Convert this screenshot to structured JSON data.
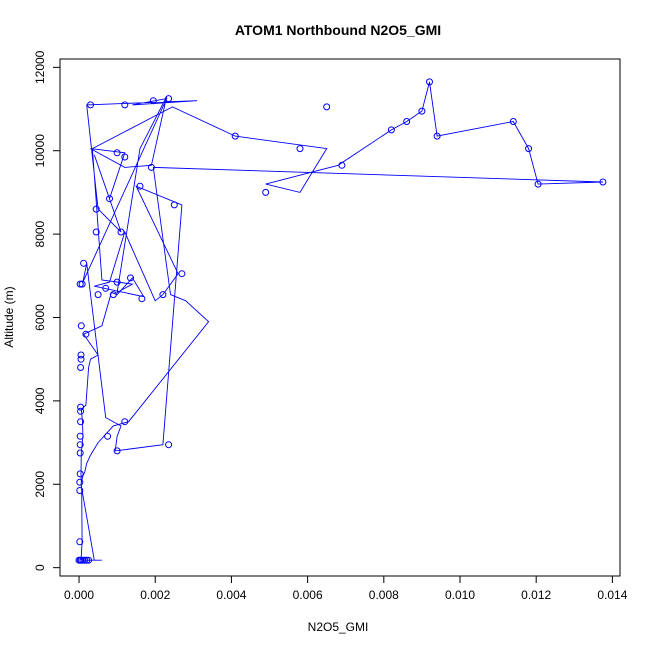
{
  "chart_data": {
    "type": "line",
    "title": "ATOM1 Northbound N2O5_GMI",
    "xlabel": "N2O5_GMI",
    "ylabel": "Altitude (m)",
    "xlim": [
      -0.0005,
      0.0142
    ],
    "ylim": [
      -200,
      12200
    ],
    "x_ticks": [
      0.0,
      0.002,
      0.004,
      0.006,
      0.008,
      0.01,
      0.012,
      0.014
    ],
    "x_tick_labels": [
      "0.000",
      "0.002",
      "0.004",
      "0.006",
      "0.008",
      "0.010",
      "0.012",
      "0.014"
    ],
    "y_ticks": [
      0,
      2000,
      4000,
      6000,
      8000,
      10000,
      12000
    ],
    "y_tick_labels": [
      "0",
      "2000",
      "4000",
      "6000",
      "8000",
      "10000",
      "12000"
    ],
    "series_color": "#0000ff",
    "grid": false,
    "series": [
      {
        "x": [
          5e-05,
          8e-05,
          7e-05,
          6e-05,
          5e-05,
          6e-05,
          8e-05,
          0.0001,
          9e-05,
          6e-05,
          0.00018,
          0.00025,
          0.0003,
          0.0005,
          0.00012,
          0.0006,
          0.00085,
          0.001,
          0.0014,
          0.0017,
          0.0004,
          0.0008,
          0.0012,
          0.002,
          0.0022,
          0.0026,
          0.0015,
          0.0027,
          0.0022,
          0.00095,
          0.001,
          0.0011,
          0.0007,
          0.0002,
          0.0001,
          0.0023,
          0.0014,
          0.0031,
          0.0002,
          0.0005,
          0.0011,
          0.0004,
          0.0008,
          0.0012,
          0.0003,
          0.0012,
          0.0019,
          0.0023,
          0.0016,
          0.001,
          0.0014,
          0.0006,
          0.00035,
          0.00245,
          0.0041,
          0.0065,
          0.0058,
          0.0049,
          0.0068,
          0.0082,
          0.0086,
          0.009,
          0.0092,
          0.0094,
          0.0114,
          0.0118,
          0.01205,
          0.01375,
          0.00195,
          0.0024,
          0.0028,
          0.0034,
          0.0013,
          0.0009,
          0.0005,
          0.0003,
          0.0002,
          0.00015,
          0.0001,
          5e-05,
          0.0004,
          0.0006,
          0.0003,
          0.00045,
          0.00015
        ],
        "y": [
          180,
          600,
          1850,
          2050,
          2250,
          2750,
          2950,
          3150,
          3500,
          3800,
          3900,
          4800,
          5000,
          5100,
          5600,
          5800,
          6600,
          6550,
          6950,
          6500,
          6750,
          6850,
          8050,
          6400,
          6550,
          7050,
          9150,
          8700,
          2950,
          2800,
          3150,
          3400,
          3600,
          7300,
          6850,
          11250,
          11100,
          11200,
          11100,
          8600,
          8050,
          9900,
          8850,
          9950,
          10050,
          9600,
          9650,
          11300,
          10050,
          6600,
          6800,
          6900,
          10050,
          11050,
          10350,
          10050,
          9000,
          9200,
          9650,
          10500,
          10700,
          10950,
          11650,
          10350,
          10700,
          10050,
          9200,
          9250,
          9600,
          6550,
          6400,
          5900,
          3500,
          3400,
          3000,
          2700,
          2500,
          2300,
          2200,
          2000,
          180,
          180,
          180,
          180,
          180
        ]
      }
    ],
    "points": [
      [
        0.0,
        180
      ],
      [
        3e-05,
        180
      ],
      [
        6e-05,
        180
      ],
      [
        0.0001,
        180
      ],
      [
        0.00015,
        180
      ],
      [
        0.0002,
        180
      ],
      [
        0.00025,
        180
      ],
      [
        2e-05,
        620
      ],
      [
        2e-05,
        1850
      ],
      [
        2e-05,
        2050
      ],
      [
        3e-05,
        2250
      ],
      [
        3e-05,
        2750
      ],
      [
        3e-05,
        2950
      ],
      [
        3e-05,
        3150
      ],
      [
        4e-05,
        3500
      ],
      [
        4e-05,
        3750
      ],
      [
        4e-05,
        3850
      ],
      [
        4e-05,
        4800
      ],
      [
        5e-05,
        5000
      ],
      [
        5e-05,
        5100
      ],
      [
        0.00018,
        5600
      ],
      [
        6e-05,
        5800
      ],
      [
        3e-05,
        6800
      ],
      [
        8e-05,
        6800
      ],
      [
        0.00012,
        7300
      ],
      [
        0.0005,
        6550
      ],
      [
        0.0007,
        6700
      ],
      [
        0.0009,
        6550
      ],
      [
        0.001,
        6850
      ],
      [
        0.00135,
        6950
      ],
      [
        0.00165,
        6450
      ],
      [
        0.0022,
        6550
      ],
      [
        0.0027,
        7050
      ],
      [
        0.00045,
        8050
      ],
      [
        0.00045,
        8600
      ],
      [
        0.0008,
        8850
      ],
      [
        0.0011,
        8050
      ],
      [
        0.0016,
        9150
      ],
      [
        0.0025,
        8700
      ],
      [
        0.0003,
        11100
      ],
      [
        0.0012,
        11100
      ],
      [
        0.00195,
        11200
      ],
      [
        0.00235,
        11250
      ],
      [
        0.001,
        9950
      ],
      [
        0.0012,
        9850
      ],
      [
        0.0019,
        9600
      ],
      [
        0.0041,
        10350
      ],
      [
        0.0058,
        10050
      ],
      [
        0.0065,
        11050
      ],
      [
        0.0049,
        9000
      ],
      [
        0.0069,
        9650
      ],
      [
        0.0082,
        10500
      ],
      [
        0.0086,
        10700
      ],
      [
        0.009,
        10950
      ],
      [
        0.0092,
        11650
      ],
      [
        0.0094,
        10350
      ],
      [
        0.0114,
        10700
      ],
      [
        0.0118,
        10050
      ],
      [
        0.01205,
        9200
      ],
      [
        0.01375,
        9250
      ],
      [
        0.00235,
        2950
      ],
      [
        0.001,
        2800
      ],
      [
        0.00075,
        3150
      ],
      [
        0.0012,
        3500
      ]
    ]
  }
}
